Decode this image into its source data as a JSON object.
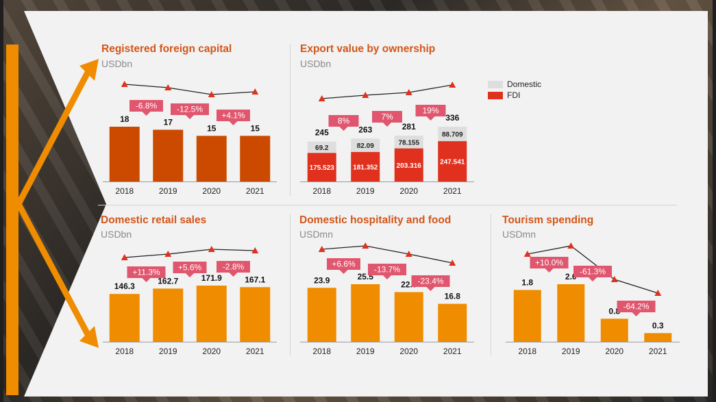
{
  "theme": {
    "orange_dark": "#cc4a00",
    "orange": "#ef8c00",
    "red": "#e0301e",
    "grey": "#dedede",
    "pink": "#e0566e",
    "line": "#222222",
    "marker": "#e0301e"
  },
  "legend": {
    "domestic_label": "Domestic",
    "fdi_label": "FDI",
    "domestic_color": "#dedede",
    "fdi_color": "#e0301e"
  },
  "chart_data": [
    {
      "id": "rfc",
      "type": "bar",
      "title": "Registered foreign capital",
      "unit": "USDbn",
      "categories": [
        "2018",
        "2019",
        "2020",
        "2021"
      ],
      "values": [
        18,
        17,
        15,
        15
      ],
      "value_labels": [
        "18",
        "17",
        "15",
        "15"
      ],
      "bar_color": "#cc4a00",
      "growth_labels": [
        "-6.8%",
        "-12.5%",
        "+4.1%"
      ]
    },
    {
      "id": "exp",
      "type": "bar",
      "stacked": true,
      "title": "Export value by ownership",
      "unit": "USDbn",
      "categories": [
        "2018",
        "2019",
        "2020",
        "2021"
      ],
      "totals": [
        "245",
        "263",
        "281",
        "336"
      ],
      "series": [
        {
          "name": "FDI",
          "values": [
            175.523,
            181.352,
            203.316,
            247.541
          ],
          "labels": [
            "175.523",
            "181.352",
            "203.316",
            "247.541"
          ]
        },
        {
          "name": "Domestic",
          "values": [
            69.2,
            82.09,
            78.155,
            88.709
          ],
          "labels": [
            "69.2",
            "82.09",
            "78.155",
            "88.709"
          ]
        }
      ],
      "growth_labels": [
        "8%",
        "7%",
        "19%"
      ]
    },
    {
      "id": "retail",
      "type": "bar",
      "title": "Domestic retail sales",
      "unit": "USDbn",
      "categories": [
        "2018",
        "2019",
        "2020",
        "2021"
      ],
      "values": [
        146.3,
        162.7,
        171.9,
        167.1
      ],
      "value_labels": [
        "146.3",
        "162.7",
        "171.9",
        "167.1"
      ],
      "bar_color": "#ef8c00",
      "growth_labels": [
        "+11.3%",
        "+5.6%",
        "-2.8%"
      ]
    },
    {
      "id": "hosp",
      "type": "bar",
      "title": "Domestic hospitality and food",
      "unit": "USDmn",
      "categories": [
        "2018",
        "2019",
        "2020",
        "2021"
      ],
      "values": [
        23.9,
        25.5,
        22.0,
        16.8
      ],
      "value_labels": [
        "23.9",
        "25.5",
        "22.0",
        "16.8"
      ],
      "bar_color": "#ef8c00",
      "growth_labels": [
        "+6.6%",
        "-13.7%",
        "-23.4%"
      ]
    },
    {
      "id": "tour",
      "type": "bar",
      "title": "Tourism spending",
      "unit": "USDmn",
      "categories": [
        "2018",
        "2019",
        "2020",
        "2021"
      ],
      "values": [
        1.8,
        2.0,
        0.8,
        0.3
      ],
      "value_labels": [
        "1.8",
        "2.0",
        "0.8",
        "0.3"
      ],
      "bar_color": "#ef8c00",
      "growth_labels": [
        "+10.0%",
        "-61.3%",
        "-64.2%"
      ]
    }
  ]
}
